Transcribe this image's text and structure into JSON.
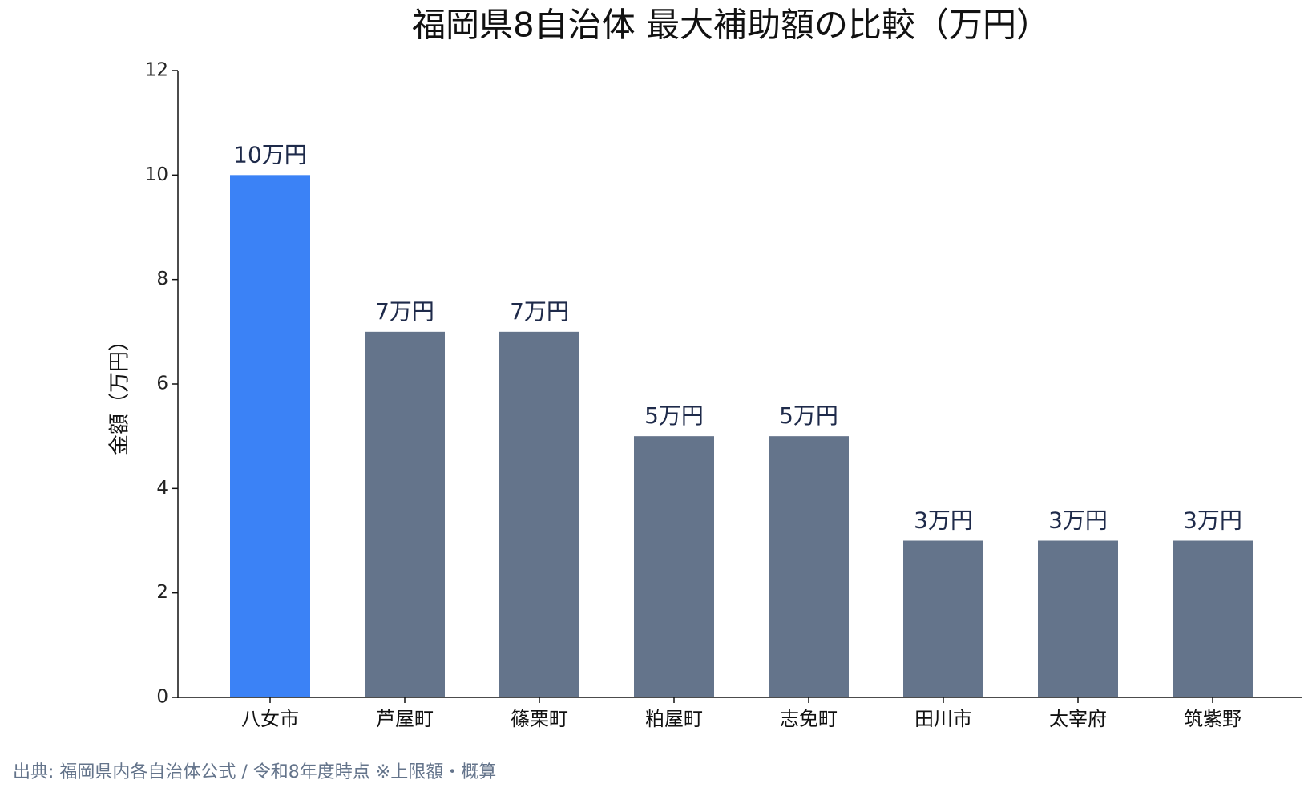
{
  "chart_data": {
    "type": "bar",
    "title": "福岡県8自治体 最大補助額の比較（万円）",
    "y_label": "金額（万円）",
    "categories": [
      "八女市",
      "芦屋町",
      "篠栗町",
      "粕屋町",
      "志免町",
      "田川市",
      "太宰府",
      "筑紫野"
    ],
    "values": [
      10,
      7,
      7,
      5,
      5,
      3,
      3,
      3
    ],
    "value_labels": [
      "10万円",
      "7万円",
      "7万円",
      "5万円",
      "5万円",
      "3万円",
      "3万円",
      "3万円"
    ],
    "colors": [
      "#3b82f6",
      "#64748b",
      "#64748b",
      "#64748b",
      "#64748b",
      "#64748b",
      "#64748b",
      "#64748b"
    ],
    "ylim": [
      0,
      12
    ],
    "yticks": [
      0,
      2,
      4,
      6,
      8,
      10,
      12
    ],
    "grid": false,
    "source": "出典: 福岡県内各自治体公式 / 令和8年度時点 ※上限額・概算"
  }
}
